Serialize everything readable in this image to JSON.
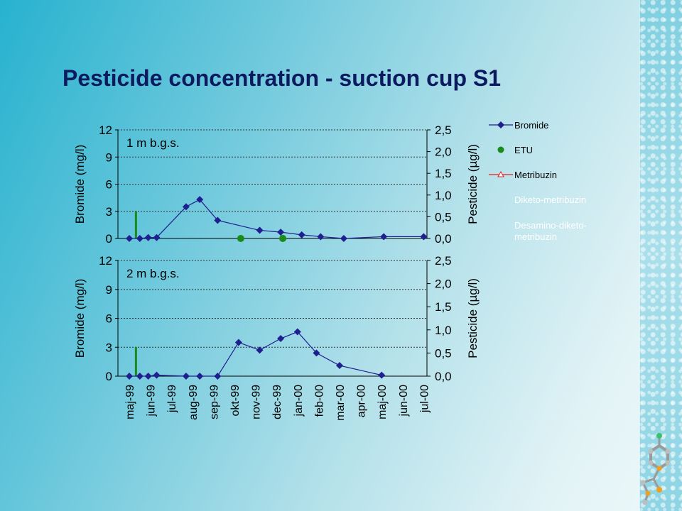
{
  "slide": {
    "title": "Pesticide concentration - suction cup S1"
  },
  "chart_data": {
    "type": "line",
    "x_categories": [
      "maj-99",
      "jun-99",
      "jul-99",
      "aug-99",
      "sep-99",
      "okt-99",
      "nov-99",
      "dec-99",
      "jan-00",
      "feb-00",
      "mar-00",
      "apr-00",
      "maj-00",
      "jun-00",
      "jul-00"
    ],
    "legend": [
      "Bromide",
      "ETU",
      "Metribuzin",
      "Diketo-metribuzin",
      "Desamino-diketo-metribuzin"
    ],
    "colors": {
      "bromide": "#1f1f8f",
      "etu": "#1a8a1a",
      "metribuzin": "#e02020",
      "grid": "#333333"
    },
    "panels": [
      {
        "label": "1 m b.g.s.",
        "ylabel_left": "Bromide (mg/l)",
        "ylabel_right": "Pesticide (µg/l)",
        "left_ticks": [
          "12",
          "9",
          "6",
          "3",
          "0"
        ],
        "right_ticks": [
          "2,5",
          "2,0",
          "1,5",
          "1,0",
          "0,5",
          "0,0"
        ],
        "ylim_left": [
          0,
          12
        ],
        "ylim_right": [
          0,
          2.5
        ],
        "bromide": [
          [
            0,
            0
          ],
          [
            0.5,
            0
          ],
          [
            0.9,
            0.1
          ],
          [
            1.3,
            0.1
          ],
          [
            2.7,
            3.5
          ],
          [
            3.35,
            4.3
          ],
          [
            4.2,
            2.0
          ],
          [
            6.2,
            0.9
          ],
          [
            7.2,
            0.7
          ],
          [
            8.2,
            0.4
          ],
          [
            9.1,
            0.2
          ],
          [
            10.2,
            0
          ],
          [
            12.1,
            0.2
          ],
          [
            14,
            0.2
          ]
        ],
        "etu": [
          [
            5.3,
            0
          ],
          [
            7.3,
            0
          ]
        ],
        "etu_bar": {
          "x": 0.3,
          "value": 0.63
        }
      },
      {
        "label": "2 m b.g.s.",
        "ylabel_left": "Bromide (mg/l)",
        "ylabel_right": "Pesticide (µg/l)",
        "left_ticks": [
          "12",
          "9",
          "6",
          "3",
          "0"
        ],
        "right_ticks": [
          "2,5",
          "2,0",
          "1,5",
          "1,0",
          "0,5",
          "0,0"
        ],
        "ylim_left": [
          0,
          12
        ],
        "ylim_right": [
          0,
          2.5
        ],
        "bromide": [
          [
            0,
            0
          ],
          [
            0.5,
            0
          ],
          [
            0.9,
            0
          ],
          [
            1.3,
            0.1
          ],
          [
            2.7,
            0
          ],
          [
            3.35,
            0
          ],
          [
            4.2,
            0
          ],
          [
            5.2,
            3.5
          ],
          [
            6.2,
            2.7
          ],
          [
            7.2,
            3.9
          ],
          [
            8.0,
            4.6
          ],
          [
            8.9,
            2.4
          ],
          [
            10.0,
            1.1
          ],
          [
            12.0,
            0.1
          ]
        ],
        "etu": [],
        "etu_bar": {
          "x": 0.3,
          "value": 0.63
        }
      }
    ]
  }
}
